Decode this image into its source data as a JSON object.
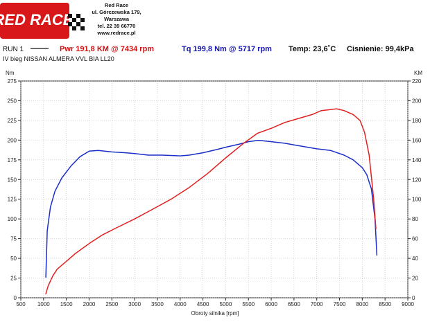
{
  "header": {
    "logo_text": "RED RACE",
    "company_name": "Red Race",
    "address_line": "ul. Górczewska 179,",
    "city": "Warszawa",
    "phone": "tel. 22 39 66770",
    "website": "www.redrace.pl"
  },
  "run": {
    "label": "RUN 1",
    "vehicle": "IV bieg NISSAN ALMERA VVL BIA LL20",
    "power_summary": "Pwr  191,8 KM @ 7434 rpm",
    "torque_summary": "Tq 199,8 Nm @ 5717 rpm",
    "temperature": "Temp: 23,6˚C",
    "pressure": "Cisnienie: 99,4kPa"
  },
  "colors": {
    "power": "#e02020",
    "torque": "#1a2ec8",
    "summary_power_text": "#d01010",
    "summary_torque_text": "#1515b0",
    "logo_red": "#d81818",
    "grid": "#b8b8b8"
  },
  "chart_data": {
    "type": "line",
    "xlabel": "Obroty silnika [rpm]",
    "ylabel_left": "Nm",
    "ylabel_right": "KM",
    "xlim": [
      500,
      9000
    ],
    "ylim_left": [
      0,
      275
    ],
    "ylim_right": [
      0,
      220
    ],
    "x_ticks": [
      500,
      1000,
      1500,
      2000,
      2500,
      3000,
      3500,
      4000,
      4500,
      5000,
      5500,
      6000,
      6500,
      7000,
      7500,
      8000,
      8500,
      9000
    ],
    "y_ticks_left": [
      0,
      25,
      50,
      75,
      100,
      125,
      150,
      175,
      200,
      225,
      250,
      275
    ],
    "y_ticks_right": [
      0,
      20,
      40,
      60,
      80,
      100,
      120,
      140,
      160,
      180,
      200,
      220
    ],
    "grid": true,
    "series": [
      {
        "name": "Tq",
        "axis": "left",
        "x": [
          1050,
          1080,
          1150,
          1250,
          1400,
          1600,
          1800,
          2000,
          2200,
          2500,
          2800,
          3000,
          3300,
          3600,
          4000,
          4200,
          4500,
          4800,
          5000,
          5300,
          5500,
          5717,
          6000,
          6300,
          6500,
          7000,
          7300,
          7600,
          7800,
          8000,
          8100,
          8200,
          8280,
          8320
        ],
        "y": [
          26,
          85,
          115,
          135,
          152,
          167,
          179,
          186,
          187,
          185,
          184,
          183,
          181,
          181,
          180,
          181,
          184,
          188,
          191,
          195,
          198,
          199.8,
          198,
          196,
          194,
          189,
          187,
          181,
          175,
          165,
          156,
          138,
          100,
          54
        ]
      },
      {
        "name": "Pwr",
        "axis": "right",
        "x": [
          1050,
          1100,
          1200,
          1300,
          1500,
          1700,
          2000,
          2300,
          2600,
          3000,
          3400,
          3800,
          4200,
          4600,
          5000,
          5400,
          5700,
          6000,
          6300,
          6600,
          6900,
          7100,
          7300,
          7434,
          7600,
          7800,
          7950,
          8050,
          8150,
          8250,
          8300
        ],
        "y": [
          4,
          12,
          22,
          29,
          37,
          45,
          55,
          64,
          71,
          80,
          90,
          100,
          112,
          126,
          142,
          157,
          167,
          172,
          178,
          182,
          186,
          190,
          191,
          191.8,
          190,
          186,
          180,
          168,
          145,
          100,
          70
        ]
      }
    ]
  }
}
